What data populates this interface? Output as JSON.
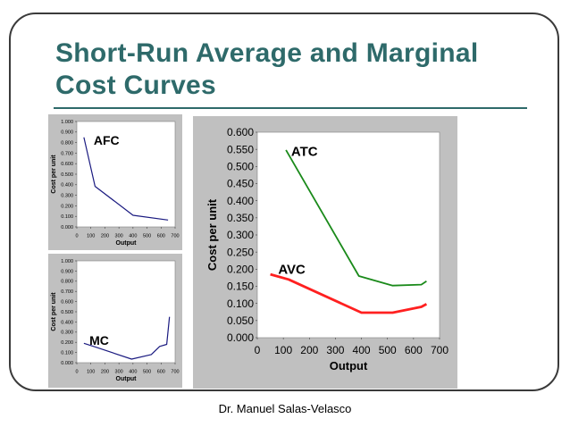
{
  "slide": {
    "title": "Short-Run Average and Marginal Cost Curves",
    "footer": "Dr. Manuel Salas-Velasco",
    "accent_color": "#2e6a6a"
  },
  "chart_data": [
    {
      "id": "afc",
      "type": "line",
      "title": "",
      "xlabel": "Output",
      "ylabel": "Cost per unit",
      "xlim": [
        0,
        700
      ],
      "ylim": [
        0,
        1.0
      ],
      "xticks": [
        "0",
        "100",
        "200",
        "300",
        "400",
        "500",
        "600",
        "700"
      ],
      "yticks": [
        "0.000",
        "0.100",
        "0.200",
        "0.300",
        "0.400",
        "0.500",
        "0.600",
        "0.700",
        "0.800",
        "0.900",
        "1.000"
      ],
      "series": [
        {
          "name": "AFC",
          "color": "#1a1a80",
          "x": [
            50,
            130,
            400,
            650
          ],
          "y": [
            0.85,
            0.385,
            0.11,
            0.065
          ]
        }
      ],
      "annotations": [
        {
          "text": "AFC",
          "x": 120,
          "y": 0.82
        }
      ]
    },
    {
      "id": "mc",
      "type": "line",
      "title": "",
      "xlabel": "Output",
      "ylabel": "Cost per unit",
      "xlim": [
        0,
        700
      ],
      "ylim": [
        0,
        1.0
      ],
      "xticks": [
        "0",
        "100",
        "200",
        "300",
        "400",
        "500",
        "600",
        "700"
      ],
      "yticks": [
        "0.000",
        "0.100",
        "0.200",
        "0.300",
        "0.400",
        "0.500",
        "0.600",
        "0.700",
        "0.800",
        "0.900",
        "1.000"
      ],
      "series": [
        {
          "name": "MC",
          "color": "#1a1a80",
          "x": [
            50,
            130,
            390,
            530,
            590,
            640,
            660
          ],
          "y": [
            0.19,
            0.155,
            0.035,
            0.08,
            0.16,
            0.18,
            0.45
          ]
        }
      ],
      "annotations": [
        {
          "text": "MC",
          "x": 90,
          "y": 0.22
        }
      ]
    },
    {
      "id": "atc-avc",
      "type": "line",
      "title": "",
      "xlabel": "Output",
      "ylabel": "Cost per unit",
      "xlim": [
        0,
        700
      ],
      "ylim": [
        0,
        0.6
      ],
      "xticks": [
        "0",
        "100",
        "200",
        "300",
        "400",
        "500",
        "600",
        "700"
      ],
      "yticks": [
        "0.000",
        "0.050",
        "0.100",
        "0.150",
        "0.200",
        "0.250",
        "0.300",
        "0.350",
        "0.400",
        "0.450",
        "0.500",
        "0.550",
        "0.600"
      ],
      "series": [
        {
          "name": "ATC",
          "color": "#1a8a1a",
          "x": [
            110,
            390,
            520,
            630,
            650
          ],
          "y": [
            0.548,
            0.18,
            0.152,
            0.155,
            0.165
          ]
        },
        {
          "name": "AVC",
          "color": "#ff2020",
          "x": [
            50,
            120,
            400,
            520,
            630,
            650
          ],
          "y": [
            0.185,
            0.17,
            0.073,
            0.073,
            0.09,
            0.098
          ]
        }
      ],
      "annotations": [
        {
          "text": "ATC",
          "x": 130,
          "y": 0.545
        },
        {
          "text": "AVC",
          "x": 80,
          "y": 0.2
        }
      ]
    }
  ]
}
